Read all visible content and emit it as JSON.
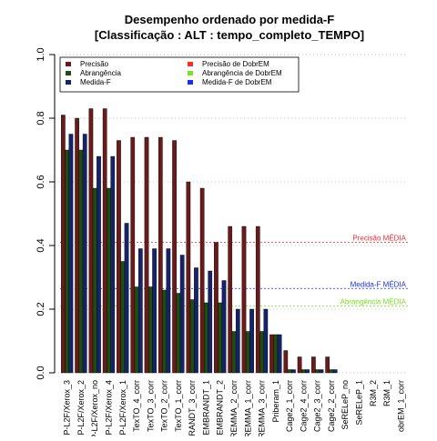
{
  "chart_data": {
    "type": "bar",
    "title": "Desempenho ordenado por medida-F",
    "subtitle": "[Classificação : ALT : tempo_completo_TEMPO]",
    "xlabel": "",
    "ylabel": "",
    "ylim": [
      0,
      1
    ],
    "yticks": [
      "0.0",
      "0.2",
      "0.4",
      "0.6",
      "0.8",
      "1.0"
    ],
    "grid": "horizontal dotted",
    "legend_placement": "top",
    "categories": [
      "P-L2F/Xerox_3",
      "P-L2F/Xerox_2",
      "P-L2F/Xerox_no",
      "P-L2F/Xerox_4",
      "P-L2F/Xerox_1",
      "TexTO_4_corr",
      "TexTO_3_corr",
      "TexTO_2_corr",
      "TexTO_1_corr",
      "RANDT_3_corr",
      "EMBRANDT_1",
      "EMBRANDT_2",
      "REMMA_2_corr",
      "REMMA_1_corr",
      "REMMA_3_corr",
      "Priberam_1",
      "Cage2_1_corr",
      "Cage2_4_corr",
      "Cage2_3_corr",
      "Cage2_2_corr",
      "SeRELeP_no",
      "SeRELeP_1",
      "R3M_2",
      "R3M_1",
      "obrEM_1_corr"
    ],
    "series": [
      {
        "name": "Precisão",
        "color": "#6b1a1a",
        "values": [
          0.81,
          0.8,
          0.83,
          0.83,
          0.73,
          0.74,
          0.74,
          0.74,
          0.73,
          0.6,
          0.58,
          0.41,
          0.46,
          0.46,
          0.46,
          0.12,
          0.07,
          0.05,
          0.05,
          0.05,
          0.0,
          0.0,
          0.0,
          0.0,
          0.0
        ]
      },
      {
        "name": "Abrangência",
        "color": "#1e4d12",
        "values": [
          0.7,
          0.7,
          0.58,
          0.58,
          0.35,
          0.27,
          0.27,
          0.26,
          0.25,
          0.23,
          0.22,
          0.22,
          0.13,
          0.13,
          0.13,
          0.12,
          0.01,
          0.01,
          0.01,
          0.01,
          0.0,
          0.0,
          0.0,
          0.0,
          0.0
        ]
      },
      {
        "name": "Medida-F",
        "color": "#14236b",
        "values": [
          0.75,
          0.75,
          0.68,
          0.68,
          0.47,
          0.39,
          0.39,
          0.39,
          0.37,
          0.33,
          0.32,
          0.29,
          0.2,
          0.2,
          0.2,
          0.12,
          0.01,
          0.01,
          0.01,
          0.01,
          0.0,
          0.0,
          0.0,
          0.0,
          0.0
        ]
      }
    ],
    "legend": [
      {
        "label": "Precisão",
        "color": "#6b1a1a"
      },
      {
        "label": "Abrangência",
        "color": "#1e4d12"
      },
      {
        "label": "Medida-F",
        "color": "#14236b"
      },
      {
        "label": "Precisão  de  DobrEM",
        "color": "#ff2a2a"
      },
      {
        "label": "Abrangência  de  DobrEM",
        "color": "#77e41e"
      },
      {
        "label": "Medida-F  de  DobrEM",
        "color": "#1a2dff"
      }
    ],
    "reference_lines": [
      {
        "label": "Precisão MÉDIA",
        "value": 0.41,
        "color": "#ff2a2a"
      },
      {
        "label": "Medida-F MÉDIA",
        "value": 0.265,
        "color": "#1a2dff"
      },
      {
        "label": "Abrangência MÉDIA",
        "value": 0.21,
        "color": "#77e41e"
      }
    ]
  }
}
